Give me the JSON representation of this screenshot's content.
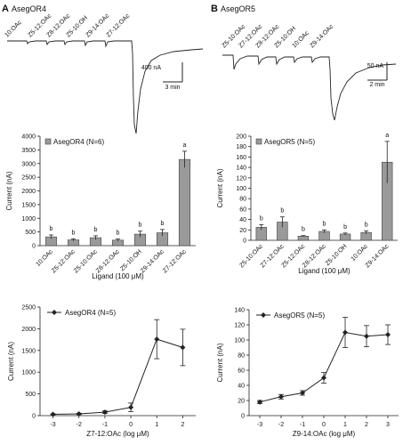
{
  "panels": [
    {
      "letter": "A",
      "title": "AsegOR4",
      "trace": {
        "ligands": [
          "10:OAc",
          "Z5-12:OAc",
          "Z8-12:OAc",
          "Z5-10:OH",
          "Z9-14:OAc",
          "Z7-12:OAc"
        ],
        "scale_y": "400 nA",
        "scale_x": "3 min"
      },
      "bar": {
        "legend": "AsegOR4 (N=6)",
        "ylabel": "Current (nA)",
        "xlabel": "Ligand (100 μM)",
        "ylim": [
          0,
          4000
        ],
        "yticks": [
          "0",
          "500",
          "1000",
          "1500",
          "2000",
          "2500",
          "3000",
          "3500",
          "4000"
        ],
        "categories": [
          "10:OAc",
          "Z5-12:OAc",
          "Z5-10:OAc",
          "Z8-12:OAc",
          "Z5-10:OH",
          "Z9-14:OAc",
          "Z7-12:OAc"
        ],
        "values": [
          320,
          210,
          290,
          200,
          420,
          470,
          3150
        ],
        "errors": [
          70,
          40,
          70,
          40,
          110,
          120,
          300
        ],
        "letters": [
          "b",
          "b",
          "b",
          "b",
          "b",
          "b",
          "a"
        ]
      },
      "dose": {
        "legend": "AsegOR4 (N=5)",
        "ylabel": "Current (nA)",
        "xlabel": "Z7-12:OAc (log μM)",
        "xlim": [
          -3.5,
          2.5
        ],
        "ylim": [
          0,
          2500
        ],
        "xticks": [
          "-3",
          "-2",
          "-1",
          "0",
          "1",
          "2"
        ],
        "yticks": [
          "0",
          "500",
          "1000",
          "1500",
          "2000",
          "2500"
        ],
        "x": [
          -3,
          -2,
          -1,
          0,
          1,
          2
        ],
        "y": [
          30,
          40,
          80,
          190,
          1760,
          1570
        ],
        "errors": [
          10,
          15,
          30,
          100,
          450,
          420
        ]
      }
    },
    {
      "letter": "B",
      "title": "AsegOR5",
      "trace": {
        "ligands": [
          "Z5-10:OAc",
          "Z7-12:OAc",
          "Z8-12:OAc",
          "Z5-10:OH",
          "10:OAc",
          "Z9-14:OAc"
        ],
        "scale_y": "50 nA",
        "scale_x": "2 min"
      },
      "bar": {
        "legend": "AsegOR5 (N=5)",
        "ylabel": "Current (nA)",
        "xlabel": "Ligand (100 μM)",
        "ylim": [
          0,
          200
        ],
        "yticks": [
          "0",
          "20",
          "40",
          "60",
          "80",
          "100",
          "120",
          "140",
          "160",
          "180",
          "200"
        ],
        "categories": [
          "Z5-10:OAc",
          "Z7-12:OAc",
          "Z5-12:OAc",
          "Z8-12:OAc",
          "Z5-10:OH",
          "10:OAc",
          "Z9-14:OAc"
        ],
        "values": [
          25,
          35,
          8,
          17,
          12,
          15,
          150
        ],
        "errors": [
          5,
          10,
          1,
          3,
          2,
          3,
          40
        ],
        "letters": [
          "b",
          "b",
          "b",
          "b",
          "b",
          "b",
          "a"
        ]
      },
      "dose": {
        "legend": "AsegOR5 (N=5)",
        "ylabel": "Current (nA)",
        "xlabel": "Z9-14:OAc (log μM)",
        "xlim": [
          -3.5,
          3.5
        ],
        "ylim": [
          0,
          140
        ],
        "xticks": [
          "-3",
          "-2",
          "-1",
          "0",
          "1",
          "2",
          "3"
        ],
        "yticks": [
          "0",
          "20",
          "40",
          "60",
          "80",
          "100",
          "120",
          "140"
        ],
        "x": [
          -3,
          -2,
          -1,
          0,
          1,
          2,
          3
        ],
        "y": [
          18,
          25,
          30,
          50,
          110,
          105,
          107
        ],
        "errors": [
          2,
          3,
          3,
          7,
          20,
          14,
          13
        ]
      }
    }
  ],
  "chart_data": [
    {
      "type": "bar",
      "categories": [
        "10:OAc",
        "Z5-12:OAc",
        "Z5-10:OAc",
        "Z8-12:OAc",
        "Z5-10:OH",
        "Z9-14:OAc",
        "Z7-12:OAc"
      ],
      "series": [
        {
          "name": "AsegOR4 (N=6)",
          "values": [
            320,
            210,
            290,
            200,
            420,
            470,
            3150
          ]
        }
      ],
      "xlabel": "Ligand (100 μM)",
      "ylabel": "Current (nA)",
      "ylim": [
        0,
        4000
      ]
    },
    {
      "type": "bar",
      "categories": [
        "Z5-10:OAc",
        "Z7-12:OAc",
        "Z5-12:OAc",
        "Z8-12:OAc",
        "Z5-10:OH",
        "10:OAc",
        "Z9-14:OAc"
      ],
      "series": [
        {
          "name": "AsegOR5 (N=5)",
          "values": [
            25,
            35,
            8,
            17,
            12,
            15,
            150
          ]
        }
      ],
      "xlabel": "Ligand (100 μM)",
      "ylabel": "Current (nA)",
      "ylim": [
        0,
        200
      ]
    },
    {
      "type": "line",
      "x": [
        -3,
        -2,
        -1,
        0,
        1,
        2
      ],
      "series": [
        {
          "name": "AsegOR4 (N=5)",
          "values": [
            30,
            40,
            80,
            190,
            1760,
            1570
          ]
        }
      ],
      "xlabel": "Z7-12:OAc (log μM)",
      "ylabel": "Current (nA)",
      "ylim": [
        0,
        2500
      ]
    },
    {
      "type": "line",
      "x": [
        -3,
        -2,
        -1,
        0,
        1,
        2,
        3
      ],
      "series": [
        {
          "name": "AsegOR5 (N=5)",
          "values": [
            18,
            25,
            30,
            50,
            110,
            105,
            107
          ]
        }
      ],
      "xlabel": "Z9-14:OAc (log μM)",
      "ylabel": "Current (nA)",
      "ylim": [
        0,
        140
      ]
    }
  ]
}
